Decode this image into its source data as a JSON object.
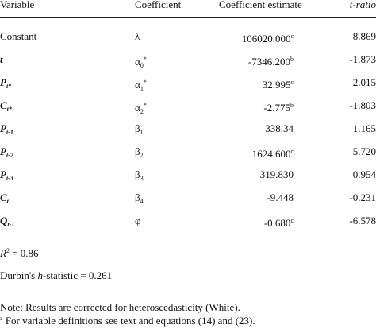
{
  "header": {
    "variable": "Variable",
    "coefficient": "Coefficient",
    "estimate": "Coefficient estimate",
    "tratio": "t-ratio"
  },
  "rows": [
    {
      "var_main": "Constant",
      "var_sub": "",
      "coef_main": "λ",
      "coef_sub": "",
      "coef_sup": "",
      "estimate": "106020.000",
      "est_sup": "c",
      "tratio": "8.869"
    },
    {
      "var_main": "t",
      "var_sub": "",
      "coef_main": "α",
      "coef_sub": "0",
      "coef_sup": "*",
      "estimate": "-7346.200",
      "est_sup": "b",
      "tratio": "-1.873"
    },
    {
      "var_main": "P",
      "var_sub": "t*",
      "coef_main": "α",
      "coef_sub": "1",
      "coef_sup": "*",
      "estimate": "32.995",
      "est_sup": "c",
      "tratio": "2.015"
    },
    {
      "var_main": "C",
      "var_sub": "t*",
      "coef_main": "α",
      "coef_sub": "2",
      "coef_sup": "*",
      "estimate": "-2.775",
      "est_sup": "b",
      "tratio": "-1.803"
    },
    {
      "var_main": "P",
      "var_sub": "t-1",
      "coef_main": "β",
      "coef_sub": "1",
      "coef_sup": "",
      "estimate": "338.34",
      "est_sup": "",
      "tratio": "1.165"
    },
    {
      "var_main": "P",
      "var_sub": "t-2",
      "coef_main": "β",
      "coef_sub": "2",
      "coef_sup": "",
      "estimate": "1624.600",
      "est_sup": "c",
      "tratio": "5.720"
    },
    {
      "var_main": "P",
      "var_sub": "t-3",
      "coef_main": "β",
      "coef_sub": "3",
      "coef_sup": "",
      "estimate": "319.830",
      "est_sup": "",
      "tratio": "0.954"
    },
    {
      "var_main": "C",
      "var_sub": "t",
      "coef_main": "β",
      "coef_sub": "4",
      "coef_sup": "",
      "estimate": "-9.448",
      "est_sup": "",
      "tratio": "-0.231"
    },
    {
      "var_main": "Q",
      "var_sub": "t-1",
      "coef_main": "φ",
      "coef_sub": "",
      "coef_sup": "",
      "estimate": "-0.680",
      "est_sup": "c",
      "tratio": "-6.578"
    }
  ],
  "stats": {
    "r2_label": "R",
    "r2_exp": "2",
    "r2_value": " = 0.86",
    "durbin_prefix": "Durbin's ",
    "durbin_h": "h",
    "durbin_suffix": "-statistic = 0.261"
  },
  "notes": {
    "note1": "Note:  Results are corrected for heteroscedasticity (White).",
    "note2_mark": "a",
    "note2": " For variable definitions see text and equations (14) and (23)."
  }
}
